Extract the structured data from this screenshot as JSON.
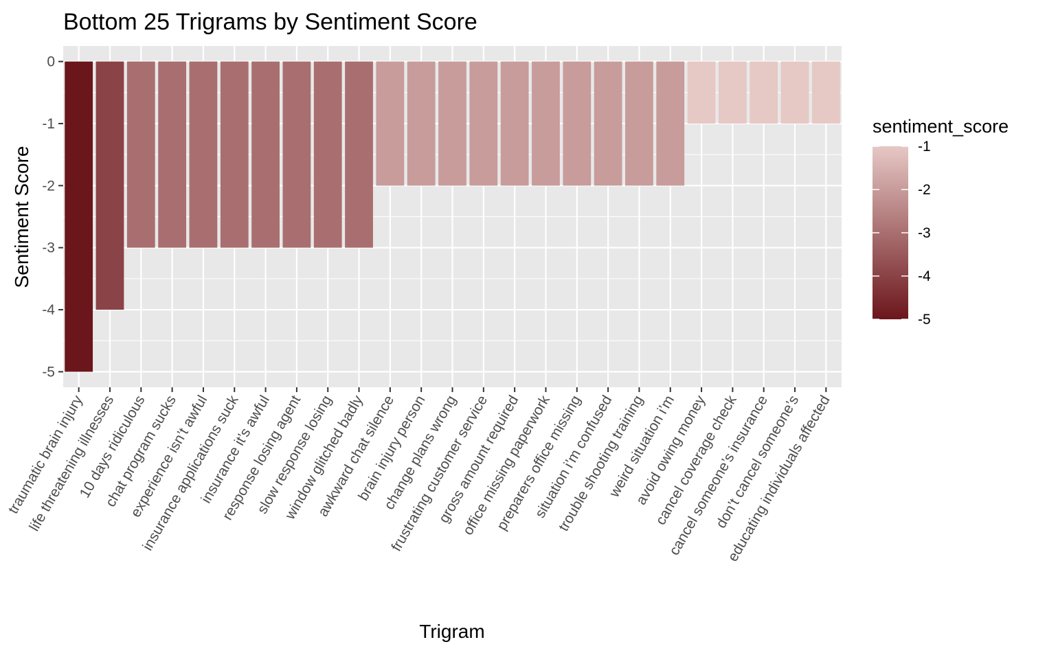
{
  "chart_data": {
    "type": "bar",
    "title": "Bottom 25 Trigrams by Sentiment Score",
    "xlabel": "Trigram",
    "ylabel": "Sentiment Score",
    "ylim": [
      -5.25,
      0.25
    ],
    "yticks": [
      0,
      -1,
      -2,
      -3,
      -4,
      -5
    ],
    "grid": true,
    "legend_position": "right",
    "legend": {
      "title": "sentiment_score",
      "min": -5,
      "max": -1,
      "ticks": [
        -1,
        -2,
        -3,
        -4,
        -5
      ],
      "low_color": "#6b161b",
      "high_color": "#e6c8c5"
    },
    "colors": {
      "panel_background": "#e8e8e8",
      "grid_major": "#ffffff",
      "tick_text": "#4d4d4d"
    },
    "categories": [
      "traumatic brain injury",
      "life threatening illnesses",
      "10 days ridiculous",
      "chat program sucks",
      "experience isn’t awful",
      "insurance applications suck",
      "insurance it’s awful",
      "response losing agent",
      "slow response losing",
      "window glitched badly",
      "awkward chat silence",
      "brain injury person",
      "change plans wrong",
      "frustrating customer service",
      "gross amount required",
      "office missing paperwork",
      "preparers office missing",
      "situation i’m confused",
      "trouble shooting training",
      "weird situation i’m",
      "avoid owing money",
      "cancel coverage check",
      "cancel someone’s insurance",
      "don’t cancel someone’s",
      "educating individuals affected"
    ],
    "values": [
      -5,
      -4,
      -3,
      -3,
      -3,
      -3,
      -3,
      -3,
      -3,
      -3,
      -2,
      -2,
      -2,
      -2,
      -2,
      -2,
      -2,
      -2,
      -2,
      -2,
      -1,
      -1,
      -1,
      -1,
      -1
    ]
  }
}
